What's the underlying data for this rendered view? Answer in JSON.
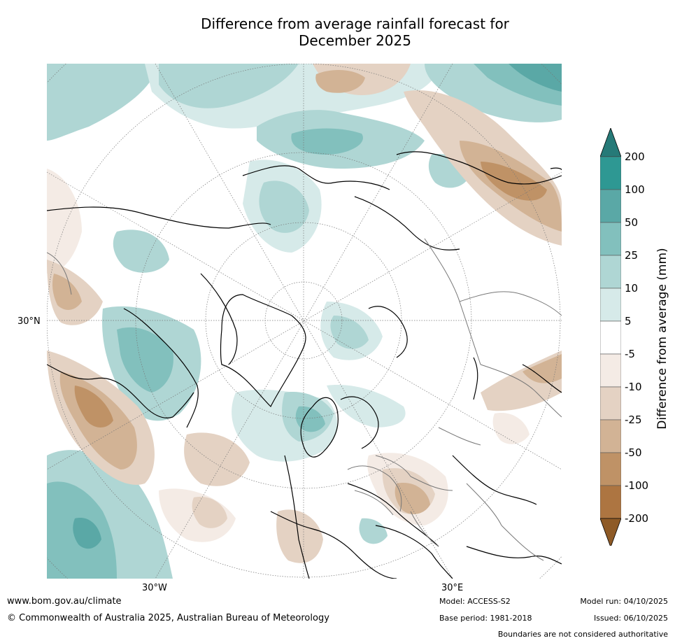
{
  "title_line1": "Difference from average rainfall forecast for",
  "title_line2": "December 2025",
  "map": {
    "lat_label": "30°N",
    "lon_labels": [
      "30°W",
      "30°E"
    ]
  },
  "colorbar": {
    "label": "Difference from average (mm)",
    "ticks": [
      "200",
      "100",
      "50",
      "25",
      "10",
      "5",
      "-5",
      "-10",
      "-25",
      "-50",
      "-100",
      "-200"
    ],
    "colors": {
      "over": "#267a78",
      "b100_200": "#2e9893",
      "b50_100": "#5aa8a6",
      "b25_50": "#82c0bd",
      "b10_25": "#afd6d4",
      "b5_10": "#d6eae9",
      "neutral": "#ffffff",
      "n5_10": "#f4ebe5",
      "n10_25": "#e4d2c3",
      "n25_50": "#d2b395",
      "n50_100": "#bf9266",
      "n100_200": "#ad7541",
      "under": "#8e5a26"
    }
  },
  "footer": {
    "url": "www.bom.gov.au/climate",
    "copyright": "© Commonwealth of Australia 2025, Australian Bureau of Meteorology",
    "model": "Model: ACCESS-S2",
    "base_period": "Base period: 1981-2018",
    "model_run": "Model run: 04/10/2025",
    "issued": "Issued: 06/10/2025",
    "disclaimer": "Boundaries are not considered authoritative"
  }
}
